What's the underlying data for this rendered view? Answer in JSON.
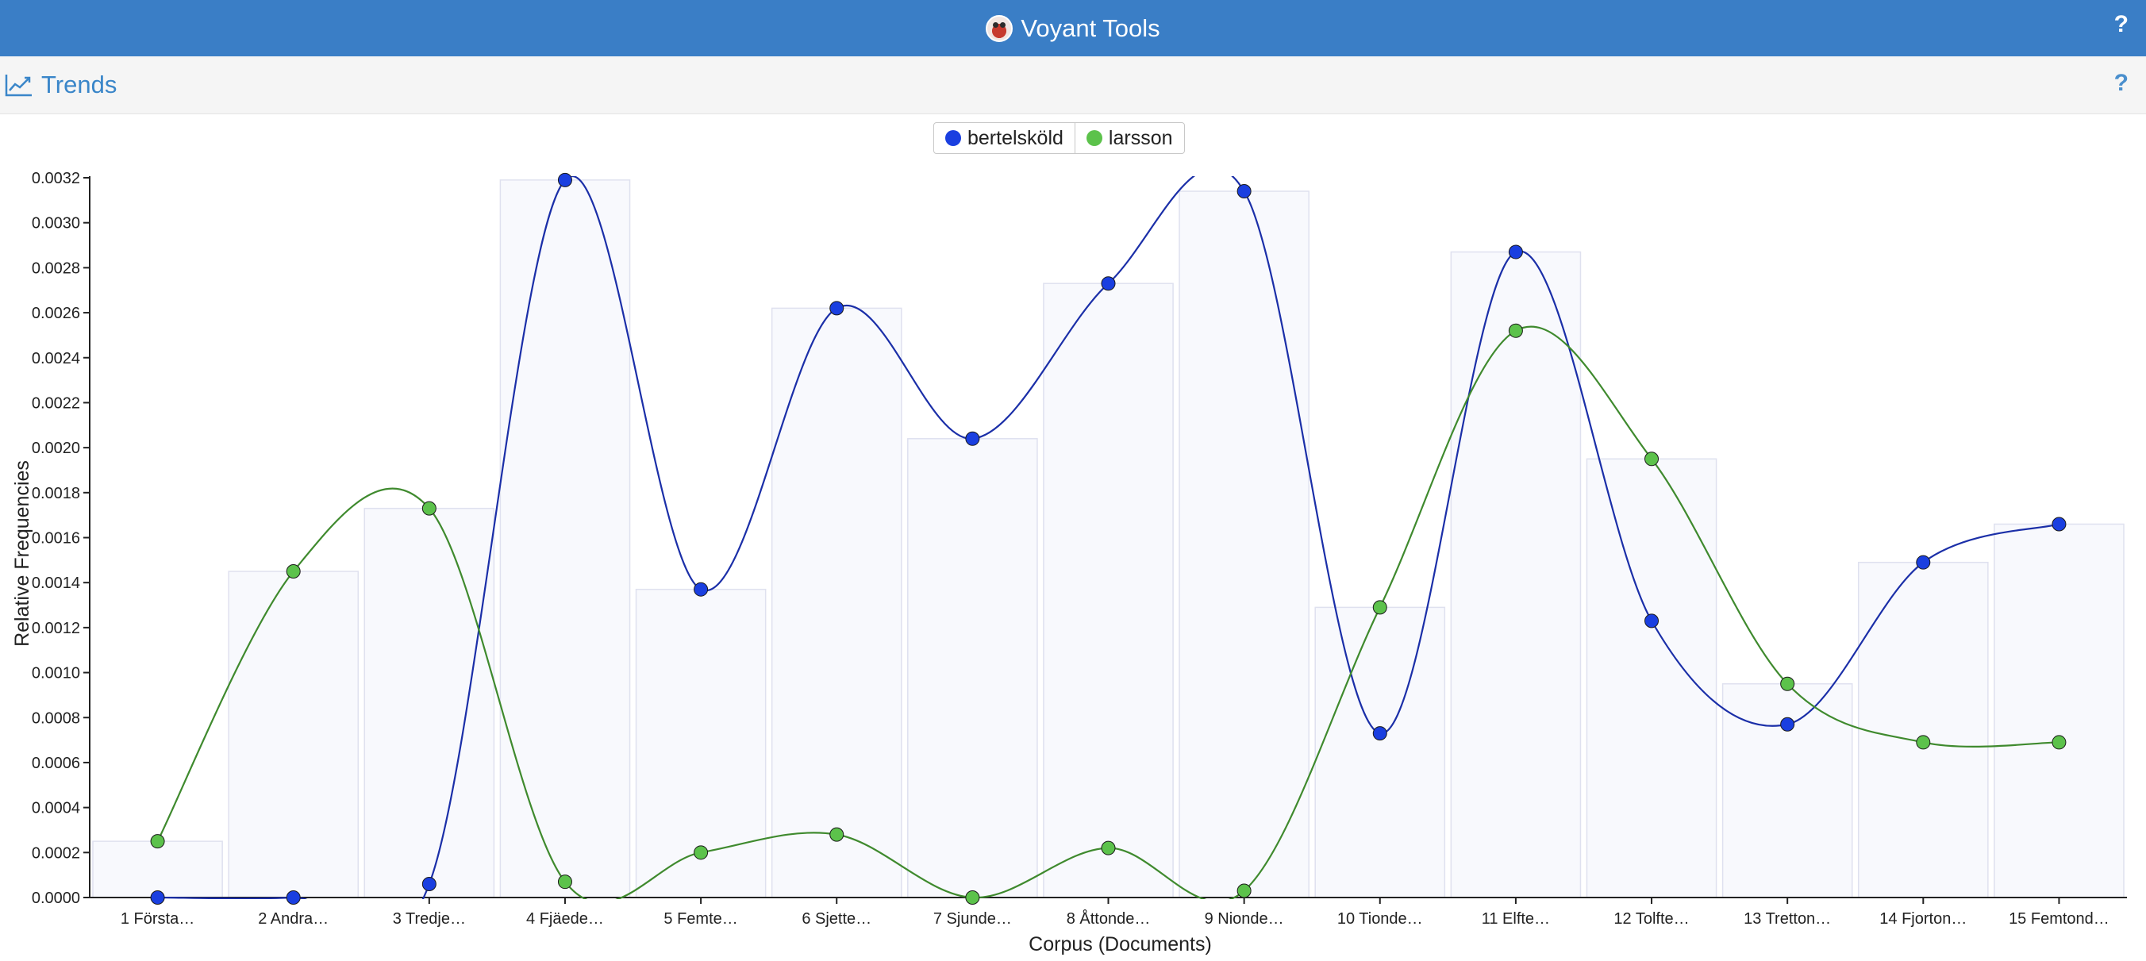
{
  "app": {
    "title": "Voyant Tools",
    "help": "?"
  },
  "panel": {
    "title": "Trends",
    "help": "?"
  },
  "colors": {
    "topbar": "#3a7ec6",
    "series1": "#1a3fe0",
    "series1_line": "#1b2fa8",
    "series2": "#5cc24b",
    "series2_line": "#3f8a2e"
  },
  "chart_data": {
    "type": "line",
    "xlabel": "Corpus (Documents)",
    "ylabel": "Relative Frequencies",
    "ylim": [
      0,
      0.0032
    ],
    "y_ticks": [
      "0.0000",
      "0.0002",
      "0.0004",
      "0.0006",
      "0.0008",
      "0.0010",
      "0.0012",
      "0.0014",
      "0.0016",
      "0.0018",
      "0.0020",
      "0.0022",
      "0.0024",
      "0.0026",
      "0.0028",
      "0.0030",
      "0.0032"
    ],
    "categories": [
      "1 Första…",
      "2 Andra…",
      "3 Tredje…",
      "4 Fjäede…",
      "5 Femte…",
      "6 Sjette…",
      "7 Sjunde…",
      "8 Åttonde…",
      "9 Nionde…",
      "10 Tionde…",
      "11 Elfte…",
      "12 Tolfte…",
      "13 Tretton…",
      "14 Fjorton…",
      "15 Femtond…"
    ],
    "series": [
      {
        "name": "bertelsköld",
        "values": [
          0.0,
          0.0,
          6e-05,
          0.00319,
          0.00137,
          0.00262,
          0.00204,
          0.00273,
          0.00314,
          0.00073,
          0.00287,
          0.00123,
          0.00077,
          0.00149,
          0.00166
        ]
      },
      {
        "name": "larsson",
        "values": [
          0.00025,
          0.00145,
          0.00173,
          7e-05,
          0.0002,
          0.00028,
          0.0,
          0.00022,
          3e-05,
          0.00129,
          0.00252,
          0.00195,
          0.00095,
          0.00069,
          0.00069
        ]
      }
    ],
    "legend": "top-center",
    "grid": false,
    "bars": true
  }
}
